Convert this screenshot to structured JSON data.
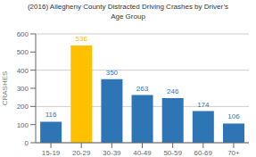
{
  "chart_data": {
    "type": "bar",
    "title": "(2016) Allegheny County Distracted Driving Crashes by Driver’s\nAge Group",
    "categories": [
      "15-19",
      "20-29",
      "30-39",
      "40-49",
      "50-59",
      "60-69",
      "70+"
    ],
    "values": [
      116,
      536,
      350,
      263,
      246,
      174,
      106
    ],
    "colors": [
      "#2e75b6",
      "#ffc000",
      "#2e75b6",
      "#2e75b6",
      "#2e75b6",
      "#2e75b6",
      "#2e75b6"
    ],
    "ylabel": "CRASHES",
    "ylim": [
      0,
      600
    ],
    "yticks": [
      0,
      100,
      200,
      300,
      400,
      500,
      600
    ],
    "grid": true,
    "data_labels": true
  }
}
